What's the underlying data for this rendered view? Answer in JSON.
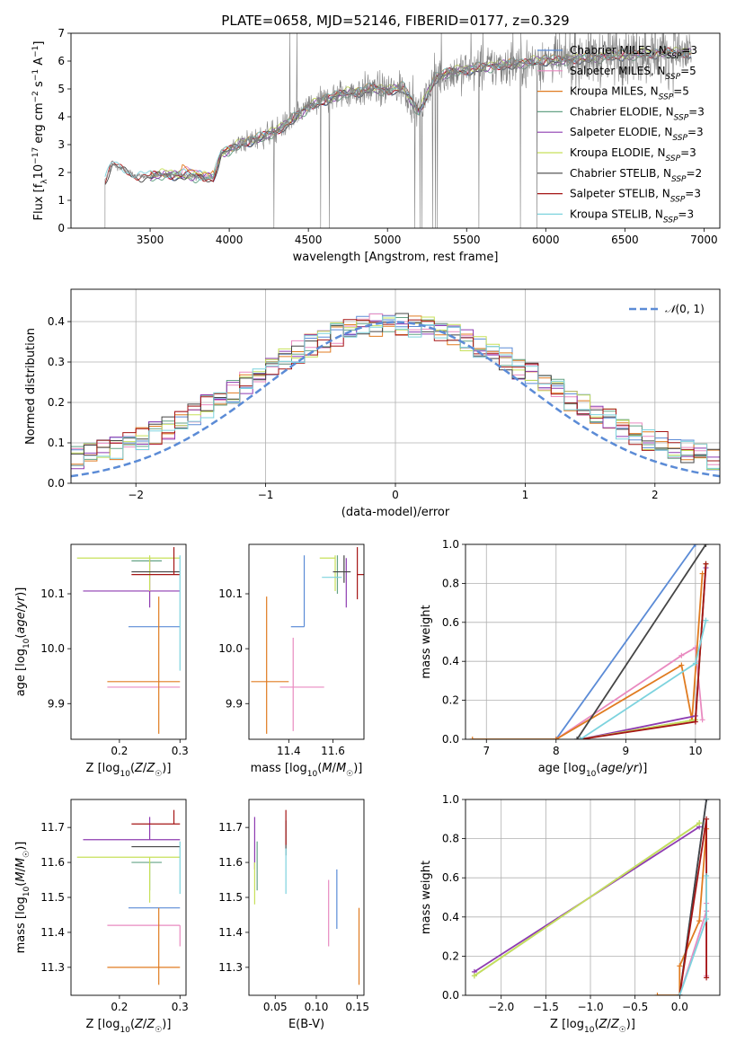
{
  "figure_title": "PLATE=0658, MJD=52146, FIBERID=0177, z=0.329",
  "models": [
    {
      "name": "Chabrier MILES",
      "nssp": "3",
      "color": "#5b8bd6"
    },
    {
      "name": "Salpeter MILES",
      "nssp": "5",
      "color": "#e98ac0"
    },
    {
      "name": "Kroupa MILES",
      "nssp": "5",
      "color": "#e07b20"
    },
    {
      "name": "Chabrier ELODIE",
      "nssp": "3",
      "color": "#65a386"
    },
    {
      "name": "Salpeter ELODIE",
      "nssp": "3",
      "color": "#8e3bb1"
    },
    {
      "name": "Kroupa ELODIE",
      "nssp": "3",
      "color": "#c7e05a"
    },
    {
      "name": "Chabrier STELIB",
      "nssp": "2",
      "color": "#454545"
    },
    {
      "name": "Salpeter STELIB",
      "nssp": "3",
      "color": "#a51515"
    },
    {
      "name": "Kroupa STELIB",
      "nssp": "3",
      "color": "#7dd3de"
    }
  ],
  "chart_data": [
    {
      "id": "spectrum",
      "type": "line",
      "xlabel": "wavelength [Angstrom, rest frame]",
      "ylabel": "Flux [f$_\\lambda$10$^{-17}$ erg cm$^{-2}$ s$^{-1}$ A$^{-1}$]",
      "xlim": [
        3000,
        7100
      ],
      "ylim": [
        0,
        7
      ],
      "xticks": [
        3500,
        4000,
        4500,
        5000,
        5500,
        6000,
        6500,
        7000
      ],
      "yticks": [
        0,
        1,
        2,
        3,
        4,
        5,
        6,
        7
      ],
      "data_color": "#808080",
      "data_range": [
        3215,
        6920
      ],
      "model_continuum": {
        "x": [
          3215,
          3260,
          3400,
          3500,
          3600,
          3700,
          3800,
          3900,
          3950,
          4000,
          4100,
          4200,
          4300,
          4400,
          4500,
          4600,
          4700,
          4800,
          4900,
          5000,
          5100,
          5200,
          5300,
          5400,
          5500,
          5600,
          5700,
          5800,
          5900,
          6000,
          6100,
          6200,
          6300,
          6400,
          6500,
          6600,
          6700,
          6800,
          6900
        ],
        "y": [
          1.7,
          2.3,
          1.9,
          1.85,
          1.95,
          1.9,
          1.85,
          1.8,
          2.7,
          2.8,
          3.1,
          3.25,
          3.5,
          3.9,
          4.35,
          4.6,
          4.8,
          4.9,
          5.0,
          4.95,
          5.05,
          4.15,
          5.4,
          5.6,
          5.7,
          5.75,
          5.85,
          5.9,
          5.95,
          6.05,
          6.0,
          6.1,
          6.1,
          6.2,
          6.2,
          6.25,
          6.3,
          6.3,
          6.3
        ]
      },
      "legend_position": "upper right"
    },
    {
      "id": "residual_hist",
      "type": "histogram",
      "xlabel": "(data-model)/error",
      "ylabel": "Normed distribution",
      "xlim": [
        -2.5,
        2.5
      ],
      "ylim": [
        0,
        0.48
      ],
      "xticks": [
        -2,
        -1,
        0,
        1,
        2
      ],
      "yticks": [
        0.0,
        0.1,
        0.2,
        0.3,
        0.4
      ],
      "grid": true,
      "reference": {
        "label": "N(0,1)",
        "color": "#5b8bd6",
        "style": "dashed"
      },
      "bin_width": 0.1,
      "legend_position": "upper right"
    },
    {
      "id": "Z_vs_age",
      "type": "errorbar",
      "xlabel": "Z [log10(Z/Z☉)]",
      "ylabel": "age  [log10(age/yr)]",
      "xlim": [
        0.12,
        0.31
      ],
      "ylim": [
        9.835,
        10.19
      ],
      "xticks": [
        0.2,
        0.3
      ],
      "yticks": [
        9.9,
        10.0,
        10.1
      ],
      "points": [
        {
          "model": "Chabrier MILES",
          "x": 0.27,
          "xerr": [
            0.055,
            0.03
          ],
          "y": 10.04,
          "yerr": [
            0.0,
            0.0
          ]
        },
        {
          "model": "Salpeter MILES",
          "x": 0.25,
          "xerr": [
            0.07,
            0.05
          ],
          "y": 9.93,
          "yerr": [
            0,
            0
          ]
        },
        {
          "model": "Kroupa MILES",
          "x": 0.265,
          "xerr": [
            0.085,
            0.035
          ],
          "y": 9.94,
          "yerr": [
            0.095,
            0.155
          ]
        },
        {
          "model": "Chabrier ELODIE",
          "x": 0.25,
          "xerr": [
            0.03,
            0.02
          ],
          "y": 10.16,
          "yerr": [
            0,
            0
          ]
        },
        {
          "model": "Salpeter ELODIE",
          "x": 0.25,
          "xerr": [
            0.11,
            0.05
          ],
          "y": 10.105,
          "yerr": [
            0.03,
            0.06
          ]
        },
        {
          "model": "Kroupa ELODIE",
          "x": 0.25,
          "xerr": [
            0.12,
            0.05
          ],
          "y": 10.165,
          "yerr": [
            0.06,
            0.005
          ]
        },
        {
          "model": "Chabrier STELIB",
          "x": 0.26,
          "xerr": [
            0.04,
            0.04
          ],
          "y": 10.14,
          "yerr": [
            0,
            0
          ]
        },
        {
          "model": "Salpeter STELIB",
          "x": 0.29,
          "xerr": [
            0.07,
            0.01
          ],
          "y": 10.135,
          "yerr": [
            0.0,
            0.05
          ]
        },
        {
          "model": "Kroupa STELIB",
          "x": 0.3,
          "xerr": [
            0.0,
            0.0
          ],
          "y": 10.13,
          "yerr": [
            0.17,
            0.04
          ]
        }
      ]
    },
    {
      "id": "mass_vs_age",
      "type": "errorbar",
      "xlabel": "mass [log10(M/M☉)]",
      "ylabel": "",
      "xlim": [
        11.22,
        11.74
      ],
      "ylim": [
        9.835,
        10.19
      ],
      "xticks": [
        11.4,
        11.6
      ],
      "yticks": [
        9.9,
        10.0,
        10.1
      ],
      "points": [
        {
          "model": "Chabrier MILES",
          "x": 11.47,
          "xerr": [
            0.06,
            0.0
          ],
          "y": 10.04,
          "yerr": [
            0.0,
            0.13
          ]
        },
        {
          "model": "Salpeter MILES",
          "x": 11.42,
          "xerr": [
            0.06,
            0.14
          ],
          "y": 9.93,
          "yerr": [
            0.08,
            0.09
          ]
        },
        {
          "model": "Kroupa MILES",
          "x": 11.3,
          "xerr": [
            0.07,
            0.1
          ],
          "y": 9.94,
          "yerr": [
            0.095,
            0.155
          ]
        },
        {
          "model": "Chabrier ELODIE",
          "x": 11.62,
          "xerr": [
            0.0,
            0.0
          ],
          "y": 10.15,
          "yerr": [
            0.05,
            0.02
          ]
        },
        {
          "model": "Salpeter ELODIE",
          "x": 11.66,
          "xerr": [
            0.0,
            0.0
          ],
          "y": 10.105,
          "yerr": [
            0.03,
            0.06
          ]
        },
        {
          "model": "Kroupa ELODIE",
          "x": 11.61,
          "xerr": [
            0.07,
            0.0
          ],
          "y": 10.165,
          "yerr": [
            0.06,
            0.005
          ]
        },
        {
          "model": "Chabrier STELIB",
          "x": 11.65,
          "xerr": [
            0.05,
            0.03
          ],
          "y": 10.14,
          "yerr": [
            0.02,
            0.03
          ]
        },
        {
          "model": "Salpeter STELIB",
          "x": 11.71,
          "xerr": [
            0.0,
            0.06
          ],
          "y": 10.135,
          "yerr": [
            0.045,
            0.05
          ]
        },
        {
          "model": "Kroupa STELIB",
          "x": 11.59,
          "xerr": [
            0.04,
            0.05
          ],
          "y": 10.13,
          "yerr": [
            0,
            0
          ]
        }
      ]
    },
    {
      "id": "age_vs_weight",
      "type": "line",
      "xlabel": "age  [log10(age/yr)]",
      "ylabel": "mass weight",
      "xlim": [
        6.7,
        10.35
      ],
      "ylim": [
        0,
        1
      ],
      "xticks": [
        7,
        8,
        9,
        10
      ],
      "yticks": [
        0.0,
        0.2,
        0.4,
        0.6,
        0.8,
        1.0
      ],
      "grid": true,
      "series": [
        {
          "model": "Chabrier MILES",
          "x": [
            8.0,
            10.0
          ],
          "y": [
            0.0,
            1.0
          ]
        },
        {
          "model": "Salpeter MILES",
          "x": [
            8.0,
            9.8,
            10.0,
            10.1
          ],
          "y": [
            0.0,
            0.43,
            0.47,
            0.1
          ]
        },
        {
          "model": "Kroupa MILES",
          "x": [
            6.8,
            8.0,
            9.8,
            9.95,
            10.1
          ],
          "y": [
            0.0,
            0.0,
            0.38,
            0.1,
            0.85
          ]
        },
        {
          "model": "Chabrier ELODIE",
          "x": [
            8.35,
            10.0,
            10.15
          ],
          "y": [
            0.0,
            0.1,
            0.9
          ]
        },
        {
          "model": "Salpeter ELODIE",
          "x": [
            8.35,
            10.0,
            10.15
          ],
          "y": [
            0.0,
            0.12,
            0.88
          ]
        },
        {
          "model": "Kroupa ELODIE",
          "x": [
            8.35,
            10.0,
            10.15
          ],
          "y": [
            0.0,
            0.1,
            0.9
          ]
        },
        {
          "model": "Chabrier STELIB",
          "x": [
            8.3,
            10.15
          ],
          "y": [
            0.0,
            1.0
          ]
        },
        {
          "model": "Salpeter STELIB",
          "x": [
            8.35,
            10.0,
            10.15
          ],
          "y": [
            0.0,
            0.09,
            0.9
          ]
        },
        {
          "model": "Kroupa STELIB",
          "x": [
            8.35,
            10.0,
            10.15
          ],
          "y": [
            0.0,
            0.39,
            0.61
          ]
        }
      ]
    },
    {
      "id": "Z_vs_mass",
      "type": "errorbar",
      "xlabel": "Z [log10(Z/Z☉)]",
      "ylabel": "mass [log10(M/M☉)]",
      "xlim": [
        0.12,
        0.31
      ],
      "ylim": [
        11.22,
        11.78
      ],
      "xticks": [
        0.2,
        0.3
      ],
      "yticks": [
        11.3,
        11.4,
        11.5,
        11.6,
        11.7
      ],
      "points": [
        {
          "model": "Chabrier MILES",
          "x": 0.27,
          "xerr": [
            0.055,
            0.03
          ],
          "y": 11.47,
          "yerr": [
            0,
            0
          ]
        },
        {
          "model": "Salpeter MILES",
          "x": 0.3,
          "xerr": [
            0.12,
            0.0
          ],
          "y": 11.42,
          "yerr": [
            0.06,
            0.0
          ]
        },
        {
          "model": "Kroupa MILES",
          "x": 0.265,
          "xerr": [
            0.085,
            0.035
          ],
          "y": 11.3,
          "yerr": [
            0.05,
            0.17
          ]
        },
        {
          "model": "Chabrier ELODIE",
          "x": 0.25,
          "xerr": [
            0.03,
            0.02
          ],
          "y": 11.6,
          "yerr": [
            0.08,
            0.0
          ]
        },
        {
          "model": "Salpeter ELODIE",
          "x": 0.25,
          "xerr": [
            0.11,
            0.05
          ],
          "y": 11.665,
          "yerr": [
            0.0,
            0.065
          ]
        },
        {
          "model": "Kroupa ELODIE",
          "x": 0.25,
          "xerr": [
            0.12,
            0.05
          ],
          "y": 11.615,
          "yerr": [
            0.13,
            0.0
          ]
        },
        {
          "model": "Chabrier STELIB",
          "x": 0.26,
          "xerr": [
            0.04,
            0.04
          ],
          "y": 11.645,
          "yerr": [
            0,
            0
          ]
        },
        {
          "model": "Salpeter STELIB",
          "x": 0.29,
          "xerr": [
            0.07,
            0.01
          ],
          "y": 11.71,
          "yerr": [
            0.0,
            0.04
          ]
        },
        {
          "model": "Kroupa STELIB",
          "x": 0.3,
          "xerr": [
            0.0,
            0.0
          ],
          "y": 11.6,
          "yerr": [
            0.09,
            0.06
          ]
        }
      ]
    },
    {
      "id": "EBV_vs_mass",
      "type": "errorbar",
      "xlabel": "E(B-V)",
      "ylabel": "",
      "xlim": [
        0.018,
        0.158
      ],
      "ylim": [
        11.22,
        11.78
      ],
      "xticks": [
        0.05,
        0.1,
        0.15
      ],
      "yticks": [
        11.3,
        11.4,
        11.5,
        11.6,
        11.7
      ],
      "points": [
        {
          "model": "Chabrier MILES",
          "x": 0.125,
          "xerr": [
            0,
            0
          ],
          "y": 11.5,
          "yerr": [
            0.09,
            0.08
          ]
        },
        {
          "model": "Salpeter MILES",
          "x": 0.115,
          "xerr": [
            0,
            0
          ],
          "y": 11.45,
          "yerr": [
            0.09,
            0.1
          ]
        },
        {
          "model": "Kroupa MILES",
          "x": 0.152,
          "xerr": [
            0,
            0
          ],
          "y": 11.36,
          "yerr": [
            0.11,
            0.11
          ]
        },
        {
          "model": "Chabrier ELODIE",
          "x": 0.028,
          "xerr": [
            0,
            0
          ],
          "y": 11.6,
          "yerr": [
            0.08,
            0.06
          ]
        },
        {
          "model": "Salpeter ELODIE",
          "x": 0.025,
          "xerr": [
            0,
            0
          ],
          "y": 11.66,
          "yerr": [
            0.08,
            0.07
          ]
        },
        {
          "model": "Kroupa ELODIE",
          "x": 0.025,
          "xerr": [
            0,
            0
          ],
          "y": 11.55,
          "yerr": [
            0.07,
            0.05
          ]
        },
        {
          "model": "Chabrier STELIB",
          "x": 0.063,
          "xerr": [
            0,
            0
          ],
          "y": 11.66,
          "yerr": [
            0.04,
            0.06
          ]
        },
        {
          "model": "Salpeter STELIB",
          "x": 0.063,
          "xerr": [
            0,
            0
          ],
          "y": 11.7,
          "yerr": [
            0.05,
            0.05
          ]
        },
        {
          "model": "Kroupa STELIB",
          "x": 0.063,
          "xerr": [
            0,
            0
          ],
          "y": 11.58,
          "yerr": [
            0.07,
            0.06
          ]
        }
      ]
    },
    {
      "id": "Z_vs_weight",
      "type": "line",
      "xlabel": "Z [log10(Z/Z☉)]",
      "ylabel": "mass weight",
      "xlim": [
        -2.4,
        0.45
      ],
      "ylim": [
        0,
        1
      ],
      "xticks": [
        -2.0,
        -1.5,
        -1.0,
        -0.5,
        0.0
      ],
      "yticks": [
        0.0,
        0.2,
        0.4,
        0.6,
        0.8,
        1.0
      ],
      "grid": true,
      "series": [
        {
          "model": "Chabrier MILES",
          "x": [
            0.0,
            0.3
          ],
          "y": [
            0.0,
            1.0
          ]
        },
        {
          "model": "Salpeter MILES",
          "x": [
            0.0,
            0.3,
            0.3,
            0.3
          ],
          "y": [
            0.0,
            0.43,
            0.47,
            0.1
          ]
        },
        {
          "model": "Kroupa MILES",
          "x": [
            -0.25,
            0.0,
            0.0,
            0.22,
            0.3
          ],
          "y": [
            0.0,
            0.0,
            0.15,
            0.38,
            0.85
          ]
        },
        {
          "model": "Chabrier ELODIE",
          "x": [
            -2.3,
            0.22
          ],
          "y": [
            0.1,
            0.88
          ]
        },
        {
          "model": "Salpeter ELODIE",
          "x": [
            -2.3,
            0.22
          ],
          "y": [
            0.12,
            0.86
          ]
        },
        {
          "model": "Kroupa ELODIE",
          "x": [
            -2.3,
            0.22
          ],
          "y": [
            0.1,
            0.88
          ]
        },
        {
          "model": "Chabrier STELIB",
          "x": [
            0.0,
            0.3
          ],
          "y": [
            0.0,
            1.0
          ]
        },
        {
          "model": "Salpeter STELIB",
          "x": [
            0.0,
            0.3,
            0.3
          ],
          "y": [
            0.0,
            0.9,
            0.09
          ]
        },
        {
          "model": "Kroupa STELIB",
          "x": [
            0.0,
            0.3,
            0.3
          ],
          "y": [
            0.0,
            0.39,
            0.61
          ]
        }
      ]
    }
  ]
}
